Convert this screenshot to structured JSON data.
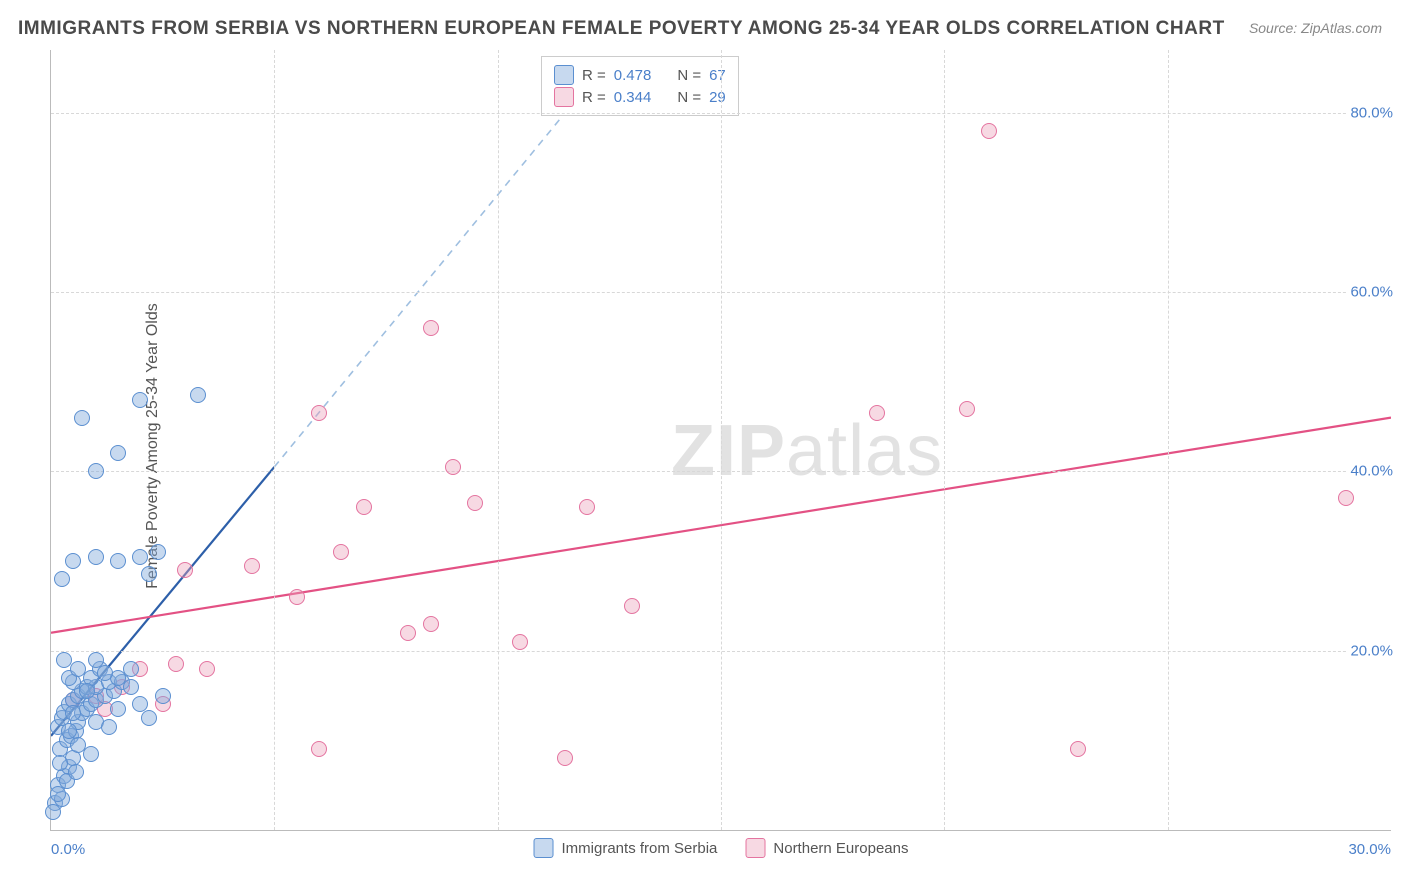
{
  "title": "IMMIGRANTS FROM SERBIA VS NORTHERN EUROPEAN FEMALE POVERTY AMONG 25-34 YEAR OLDS CORRELATION CHART",
  "source_prefix": "Source: ",
  "source_name": "ZipAtlas.com",
  "ylabel": "Female Poverty Among 25-34 Year Olds",
  "watermark_bold": "ZIP",
  "watermark_rest": "atlas",
  "chart": {
    "type": "scatter",
    "xlim": [
      0,
      30
    ],
    "ylim": [
      0,
      87
    ],
    "xticks": [
      0,
      30
    ],
    "xtick_labels": [
      "0.0%",
      "30.0%"
    ],
    "yticks": [
      20,
      40,
      60,
      80
    ],
    "ytick_labels": [
      "20.0%",
      "40.0%",
      "60.0%",
      "80.0%"
    ],
    "x_gridlines": [
      5,
      10,
      15,
      20,
      25
    ],
    "grid_color": "#d8d8d8",
    "background_color": "#ffffff",
    "axis_color": "#bbbbbb"
  },
  "series": {
    "blue": {
      "label": "Immigrants from Serbia",
      "fill": "rgba(130,170,220,0.45)",
      "stroke": "#5b8fd0",
      "R": "0.478",
      "N": "67",
      "trend": {
        "x1": 0,
        "y1": 10.5,
        "x2": 5.0,
        "y2": 40.5,
        "dash_to_x": 12.5,
        "dash_to_y": 86,
        "solid_color": "#2d5fa9",
        "dash_color": "#9fbfe0",
        "width": 2.2
      },
      "points": [
        [
          0.1,
          3.0
        ],
        [
          0.25,
          3.5
        ],
        [
          0.15,
          5.0
        ],
        [
          0.3,
          6.0
        ],
        [
          0.4,
          7.0
        ],
        [
          0.5,
          8.0
        ],
        [
          0.2,
          9.0
        ],
        [
          0.35,
          10.0
        ],
        [
          0.45,
          10.5
        ],
        [
          0.55,
          11.0
        ],
        [
          0.15,
          11.5
        ],
        [
          0.6,
          12.0
        ],
        [
          0.25,
          12.5
        ],
        [
          0.7,
          13.0
        ],
        [
          0.3,
          13.2
        ],
        [
          0.8,
          13.5
        ],
        [
          0.4,
          14.0
        ],
        [
          0.9,
          14.0
        ],
        [
          0.5,
          14.5
        ],
        [
          1.0,
          14.5
        ],
        [
          0.6,
          15.0
        ],
        [
          1.2,
          15.0
        ],
        [
          0.7,
          15.5
        ],
        [
          1.4,
          15.5
        ],
        [
          0.8,
          16.0
        ],
        [
          1.0,
          16.0
        ],
        [
          0.5,
          16.5
        ],
        [
          1.3,
          16.5
        ],
        [
          1.6,
          16.5
        ],
        [
          0.4,
          17.0
        ],
        [
          0.9,
          17.0
        ],
        [
          1.5,
          17.0
        ],
        [
          0.6,
          18.0
        ],
        [
          1.1,
          18.0
        ],
        [
          1.8,
          18.0
        ],
        [
          0.3,
          19.0
        ],
        [
          1.0,
          12.0
        ],
        [
          1.5,
          13.5
        ],
        [
          2.0,
          14.0
        ],
        [
          1.8,
          16.0
        ],
        [
          2.2,
          12.5
        ],
        [
          2.5,
          15.0
        ],
        [
          0.2,
          7.5
        ],
        [
          0.6,
          9.5
        ],
        [
          0.4,
          11.0
        ],
        [
          0.8,
          15.5
        ],
        [
          1.2,
          17.5
        ],
        [
          0.9,
          8.5
        ],
        [
          0.15,
          4.0
        ],
        [
          0.5,
          13.0
        ],
        [
          1.0,
          19.0
        ],
        [
          1.3,
          11.5
        ],
        [
          0.25,
          28.0
        ],
        [
          0.5,
          30.0
        ],
        [
          1.0,
          30.5
        ],
        [
          1.5,
          30.0
        ],
        [
          2.0,
          30.5
        ],
        [
          2.4,
          31.0
        ],
        [
          2.2,
          28.5
        ],
        [
          1.0,
          40.0
        ],
        [
          1.5,
          42.0
        ],
        [
          2.0,
          48.0
        ],
        [
          3.3,
          48.5
        ],
        [
          0.7,
          46.0
        ],
        [
          0.05,
          2.0
        ],
        [
          0.35,
          5.5
        ],
        [
          0.55,
          6.5
        ]
      ]
    },
    "pink": {
      "label": "Northern Europeans",
      "fill": "rgba(235,160,185,0.4)",
      "stroke": "#e474a0",
      "R": "0.344",
      "N": "29",
      "trend": {
        "x1": 0,
        "y1": 22.0,
        "x2": 30,
        "y2": 46.0,
        "color": "#e35184",
        "width": 2.2
      },
      "points": [
        [
          0.5,
          14.5
        ],
        [
          1.0,
          15.0
        ],
        [
          1.2,
          13.5
        ],
        [
          1.6,
          16.0
        ],
        [
          2.0,
          18.0
        ],
        [
          2.8,
          18.5
        ],
        [
          3.5,
          18.0
        ],
        [
          2.5,
          14.0
        ],
        [
          6.0,
          9.0
        ],
        [
          11.5,
          8.0
        ],
        [
          23.0,
          9.0
        ],
        [
          8.0,
          22.0
        ],
        [
          8.5,
          23.0
        ],
        [
          10.5,
          21.0
        ],
        [
          13.0,
          25.0
        ],
        [
          3.0,
          29.0
        ],
        [
          4.5,
          29.5
        ],
        [
          5.5,
          26.0
        ],
        [
          6.5,
          31.0
        ],
        [
          7.0,
          36.0
        ],
        [
          9.5,
          36.5
        ],
        [
          12.0,
          36.0
        ],
        [
          6.0,
          46.5
        ],
        [
          9.0,
          40.5
        ],
        [
          8.5,
          56.0
        ],
        [
          18.5,
          46.5
        ],
        [
          20.5,
          47.0
        ],
        [
          29.0,
          37.0
        ],
        [
          21.0,
          78.0
        ]
      ]
    }
  },
  "legend_top": {
    "r_label": "R =",
    "n_label": "N ="
  },
  "legend_bottom": {
    "items": [
      "blue",
      "pink"
    ]
  }
}
